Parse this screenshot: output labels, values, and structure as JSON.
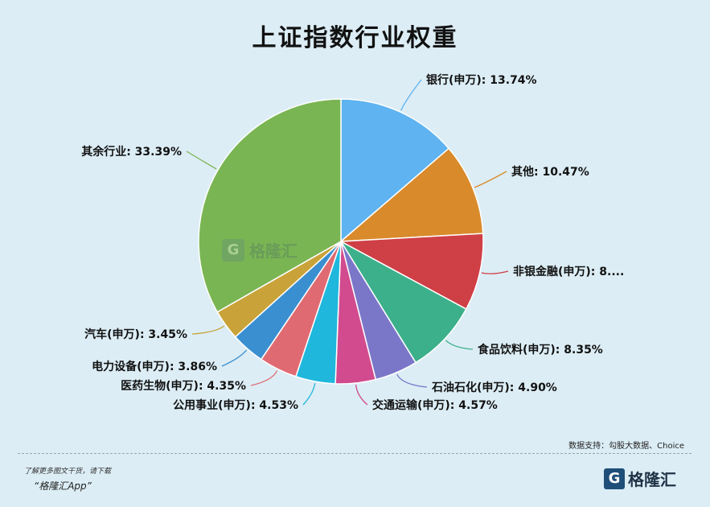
{
  "title": "上证指数行业权重",
  "source": "数据支持：勾股大数据、Choice",
  "footer": {
    "note": "了解更多图文干货，请下载",
    "app": "“格隆汇App”"
  },
  "brand": {
    "mark": "G",
    "name": "格隆汇"
  },
  "watermark": {
    "mark": "G",
    "name": "格隆汇"
  },
  "colors": {
    "background": "#dcedf5",
    "leader": "#333333"
  },
  "chart_data": {
    "type": "pie",
    "title": "上证指数行业权重",
    "slices": [
      {
        "name": "银行(申万)",
        "value": 13.74,
        "label": "银行(申万): 13.74%",
        "color": "#5eb3f0"
      },
      {
        "name": "其他",
        "value": 10.47,
        "label": "其他: 10.47%",
        "color": "#d98a2b"
      },
      {
        "name": "非银金融(申万)",
        "value": 8.8,
        "label": "非银金融(申万): 8....",
        "color": "#cf3f46"
      },
      {
        "name": "食品饮料(申万)",
        "value": 8.35,
        "label": "食品饮料(申万): 8.35%",
        "color": "#3cb08a"
      },
      {
        "name": "石油石化(申万)",
        "value": 4.9,
        "label": "石油石化(申万): 4.90%",
        "color": "#7a77c9"
      },
      {
        "name": "交通运输(申万)",
        "value": 4.57,
        "label": "交通运输(申万): 4.57%",
        "color": "#d14b8e"
      },
      {
        "name": "公用事业(申万)",
        "value": 4.53,
        "label": "公用事业(申万): 4.53%",
        "color": "#1fb7dc"
      },
      {
        "name": "医药生物(申万)",
        "value": 4.35,
        "label": "医药生物(申万): 4.35%",
        "color": "#e06a72"
      },
      {
        "name": "电力设备(申万)",
        "value": 3.86,
        "label": "电力设备(申万): 3.86%",
        "color": "#3a8fd0"
      },
      {
        "name": "汽车(申万)",
        "value": 3.45,
        "label": "汽车(申万): 3.45%",
        "color": "#c9a33a"
      },
      {
        "name": "其余行业",
        "value": 33.39,
        "label": "其余行业: 33.39%",
        "color": "#7ab553"
      }
    ]
  }
}
